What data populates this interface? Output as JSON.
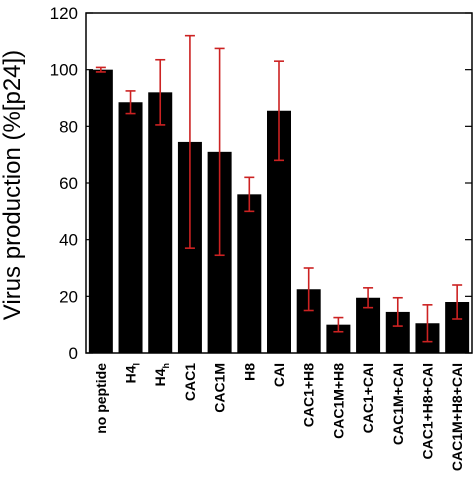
{
  "chart_data": {
    "type": "bar",
    "ylabel": "Virus production (%[p24])",
    "ylim": [
      0,
      120
    ],
    "yticks": [
      0,
      20,
      40,
      60,
      80,
      100,
      120
    ],
    "grid": false,
    "bar_color": "#000000",
    "error_color": "#cc2222",
    "categories": [
      {
        "base": "no peptide",
        "sub": ""
      },
      {
        "base": "H4",
        "sub": "l"
      },
      {
        "base": "H4",
        "sub": "h"
      },
      {
        "base": "CAC1",
        "sub": ""
      },
      {
        "base": "CAC1M",
        "sub": ""
      },
      {
        "base": "H8",
        "sub": ""
      },
      {
        "base": "CAI",
        "sub": ""
      },
      {
        "base": "CAC1+H8",
        "sub": ""
      },
      {
        "base": "CAC1M+H8",
        "sub": ""
      },
      {
        "base": "CAC1+CAI",
        "sub": ""
      },
      {
        "base": "CAC1M+CAI",
        "sub": ""
      },
      {
        "base": "CAC1+H8+CAI",
        "sub": ""
      },
      {
        "base": "CAC1M+H8+CAI",
        "sub": ""
      }
    ],
    "values": [
      100,
      88.5,
      92,
      74.5,
      71,
      56,
      85.5,
      22.5,
      10,
      19.5,
      14.5,
      10.5,
      18
    ],
    "errors": [
      0.8,
      4,
      11.5,
      37.5,
      36.5,
      6,
      17.5,
      7.5,
      2.5,
      3.5,
      5,
      6.5,
      6
    ]
  }
}
